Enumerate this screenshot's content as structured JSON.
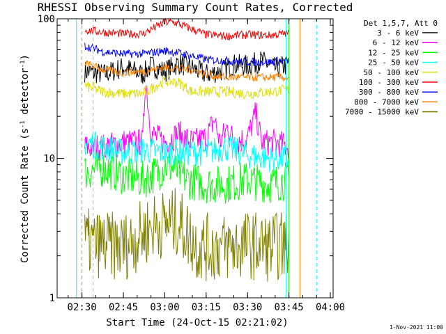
{
  "chart_data": {
    "type": "line",
    "title": "RHESSI Observing Summary Count Rates, Corrected",
    "xlabel": "Start Time (24-Oct-15 02:21:02)",
    "ylabel": {
      "prefix": "Corrected Count Rate (s",
      "sup1": "-1",
      "mid": " detector",
      "sup2": "-1",
      "suffix": ")"
    },
    "footer": "1-Nov-2021 11:00",
    "x_range": [
      "02:21",
      "04:01"
    ],
    "y_scale": "log",
    "ylim": [
      1,
      100
    ],
    "x_ticks": [
      "02:30",
      "02:45",
      "03:00",
      "03:15",
      "03:30",
      "03:45",
      "04:00"
    ],
    "y_ticks": [
      "1",
      "10",
      "100"
    ],
    "legend_header": "Det 1,5,7, Att 0",
    "legend_position": "top-right, outside plot",
    "series": [
      {
        "name": "3 - 6 keV",
        "color": "#000000",
        "x": [
          "02:31",
          "02:38",
          "02:45",
          "02:52",
          "02:55",
          "03:00",
          "03:05",
          "03:10",
          "03:15",
          "03:20",
          "03:25",
          "03:30",
          "03:35",
          "03:40",
          "03:45"
        ],
        "y": [
          42,
          40,
          45,
          40,
          46,
          42,
          48,
          44,
          40,
          42,
          47,
          46,
          50,
          44,
          47
        ],
        "noise": 0.08
      },
      {
        "name": "6 - 12 keV",
        "color": "#ff00ff",
        "x": [
          "02:31",
          "02:38",
          "02:45",
          "02:52",
          "02:53",
          "02:55",
          "03:00",
          "03:05",
          "03:10",
          "03:15",
          "03:18",
          "03:20",
          "03:23",
          "03:25",
          "03:30",
          "03:33",
          "03:35",
          "03:40",
          "03:45"
        ],
        "y": [
          12,
          12,
          13,
          13,
          38,
          15,
          13,
          15,
          13,
          14,
          19,
          13,
          17,
          13,
          14,
          21,
          13,
          13,
          12
        ],
        "noise": 0.1
      },
      {
        "name": "12 - 25 keV",
        "color": "#00ff00",
        "x": [
          "02:31",
          "02:38",
          "02:45",
          "02:52",
          "02:58",
          "03:00",
          "03:03",
          "03:08",
          "03:15",
          "03:22",
          "03:30",
          "03:38",
          "03:45"
        ],
        "y": [
          8,
          8.5,
          7.5,
          7,
          8,
          9,
          8.5,
          7,
          6.5,
          6.5,
          7,
          6.5,
          7
        ],
        "noise": 0.14
      },
      {
        "name": "25 - 50 keV",
        "color": "#00ffff",
        "x": [
          "02:31",
          "02:38",
          "02:45",
          "02:52",
          "03:00",
          "03:08",
          "03:15",
          "03:22",
          "03:30",
          "03:38",
          "03:45"
        ],
        "y": [
          13,
          12,
          11,
          11.5,
          11,
          11,
          11,
          12,
          10.5,
          10,
          10
        ],
        "noise": 0.1
      },
      {
        "name": "50 - 100 keV",
        "color": "#dddd00",
        "x": [
          "02:31",
          "02:38",
          "02:45",
          "02:52",
          "03:00",
          "03:05",
          "03:10",
          "03:15",
          "03:22",
          "03:30",
          "03:38",
          "03:45"
        ],
        "y": [
          33,
          30,
          29,
          29,
          36,
          35,
          30,
          30,
          30,
          29,
          30,
          31
        ],
        "noise": 0.04
      },
      {
        "name": "100 - 300 keV",
        "color": "#ff0000",
        "x": [
          "02:31",
          "02:38",
          "02:45",
          "02:52",
          "02:57",
          "03:00",
          "03:03",
          "03:08",
          "03:15",
          "03:22",
          "03:30",
          "03:38",
          "03:45"
        ],
        "y": [
          83,
          80,
          78,
          78,
          88,
          94,
          95,
          87,
          77,
          75,
          77,
          76,
          79
        ],
        "noise": 0.03
      },
      {
        "name": "300 - 800 keV",
        "color": "#0000ff",
        "x": [
          "02:31",
          "02:38",
          "02:45",
          "02:52",
          "03:00",
          "03:05",
          "03:10",
          "03:15",
          "03:22",
          "03:30",
          "03:38",
          "03:45"
        ],
        "y": [
          64,
          58,
          56,
          56,
          59,
          57,
          54,
          51,
          50,
          49,
          49,
          50
        ],
        "noise": 0.03
      },
      {
        "name": "800 - 7000 keV",
        "color": "#ff8000",
        "x": [
          "02:31",
          "02:38",
          "02:45",
          "02:52",
          "03:00",
          "03:05",
          "03:10",
          "03:15",
          "03:22",
          "03:30",
          "03:38",
          "03:45"
        ],
        "y": [
          48,
          43,
          41,
          42,
          45,
          44,
          43,
          40,
          38,
          38,
          38,
          38
        ],
        "noise": 0.03
      },
      {
        "name": "7000 - 15000 keV",
        "color": "#808000",
        "x": [
          "02:31",
          "02:45",
          "02:56",
          "03:05",
          "03:12",
          "03:22",
          "03:30",
          "03:38",
          "03:45"
        ],
        "y": [
          2.5,
          2.3,
          3.3,
          3.5,
          2.3,
          2.3,
          2.4,
          2.3,
          2.4
        ],
        "noise": 0.25
      }
    ],
    "attenuator_markers": [
      {
        "color": "#ff8000",
        "style": "dashed",
        "x": "02:30"
      },
      {
        "color": "#00ffff",
        "style": "dashed",
        "x": "02:34"
      },
      {
        "color": "#00ffff",
        "style": "solid",
        "x": "02:28"
      },
      {
        "color": "#00ffff",
        "style": "solid",
        "x": "03:44"
      },
      {
        "color": "#00ff00",
        "style": "solid",
        "x": "03:45"
      },
      {
        "color": "#ff8000",
        "style": "solid",
        "x": "03:49"
      },
      {
        "color": "#00ffff",
        "style": "dashed",
        "x": "03:55"
      }
    ]
  }
}
